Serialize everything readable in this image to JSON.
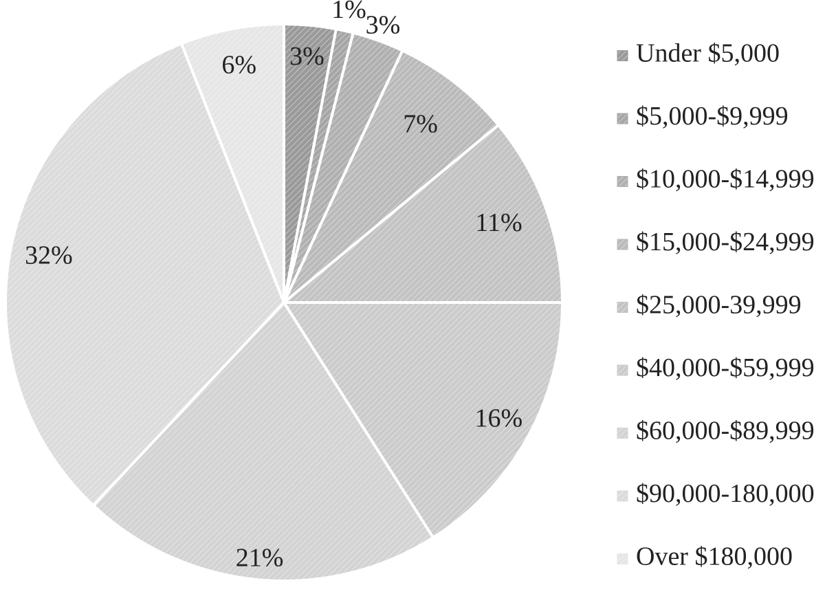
{
  "chart_data": {
    "type": "pie",
    "title": "",
    "categories": [
      "Under $5,000",
      "$5,000-$9,999",
      "$10,000-$14,999",
      "$15,000-$24,999",
      "$25,000-39,999",
      "$40,000-$59,999",
      "$60,000-$89,999",
      "$90,000-180,000",
      "Over $180,000"
    ],
    "values": [
      3,
      1,
      3,
      7,
      11,
      16,
      21,
      32,
      6
    ],
    "labels": [
      "3%",
      "1%",
      "3%",
      "7%",
      "11%",
      "16%",
      "21%",
      "32%",
      "6%"
    ],
    "colors": [
      "#9a9a9a",
      "#a6a6a6",
      "#b0b0b0",
      "#bababa",
      "#c3c3c3",
      "#cbcbcb",
      "#d3d3d3",
      "#dbdbdb",
      "#e6e6e6"
    ],
    "legend_position": "right",
    "start_angle": "12 o'clock, clockwise"
  }
}
